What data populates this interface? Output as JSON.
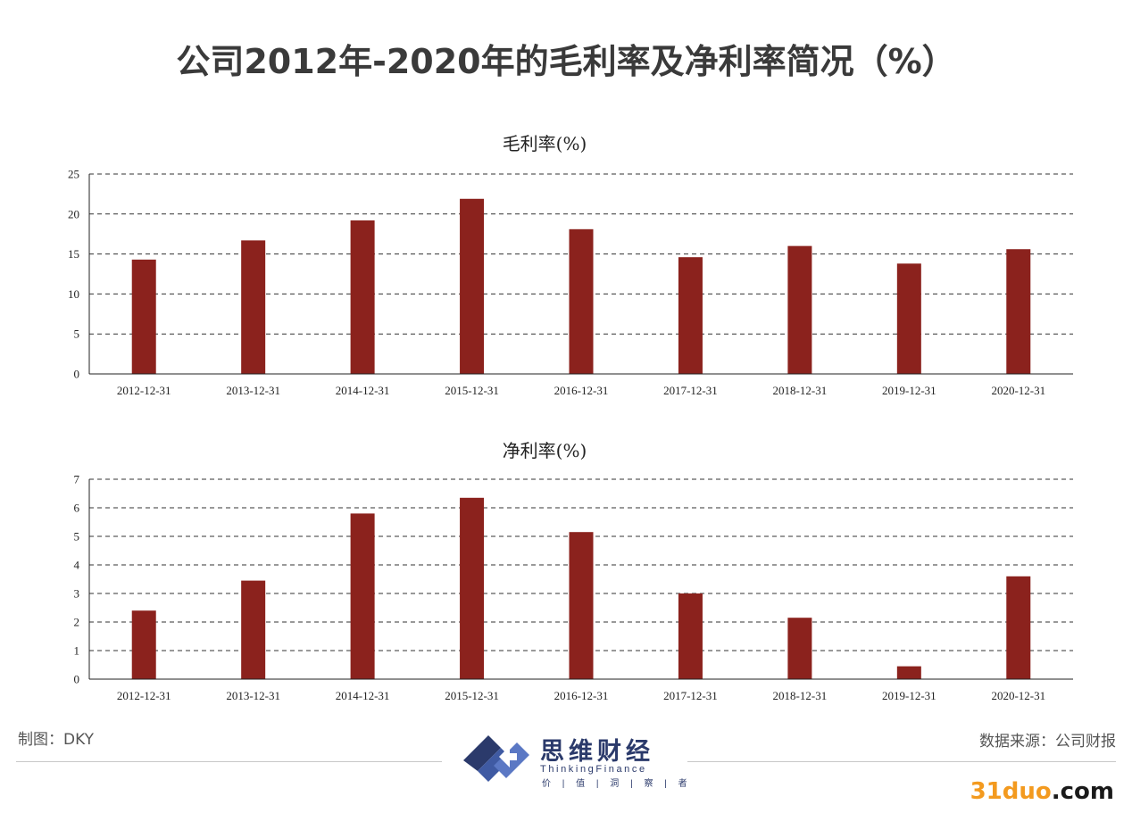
{
  "page": {
    "title": "公司2012年-2020年的毛利率及净利率简况（%）",
    "credit": "制图：DKY",
    "source": "数据来源：公司财报",
    "logo": {
      "name": "思维财经",
      "sub": "ThinkingFinance",
      "motto": "价 | 值 | 洞 | 察 | 者"
    },
    "watermark": {
      "accent": "31duo",
      "suffix": ".com"
    }
  },
  "colors": {
    "bar": "#8b221d",
    "grid": "#333333",
    "axis": "#222222"
  },
  "chart_data": [
    {
      "type": "bar",
      "title": "毛利率(%)",
      "categories": [
        "2012-12-31",
        "2013-12-31",
        "2014-12-31",
        "2015-12-31",
        "2016-12-31",
        "2017-12-31",
        "2018-12-31",
        "2019-12-31",
        "2020-12-31"
      ],
      "values": [
        14.3,
        16.7,
        19.2,
        21.9,
        18.1,
        14.6,
        16.0,
        13.8,
        15.6
      ],
      "ylim": [
        0,
        25
      ],
      "yticks": [
        0,
        5,
        10,
        15,
        20,
        25
      ],
      "grid": true
    },
    {
      "type": "bar",
      "title": "净利率(%)",
      "categories": [
        "2012-12-31",
        "2013-12-31",
        "2014-12-31",
        "2015-12-31",
        "2016-12-31",
        "2017-12-31",
        "2018-12-31",
        "2019-12-31",
        "2020-12-31"
      ],
      "values": [
        2.4,
        3.45,
        5.8,
        6.35,
        5.15,
        3.0,
        2.15,
        0.45,
        3.6
      ],
      "ylim": [
        0,
        7
      ],
      "yticks": [
        0,
        1,
        2,
        3,
        4,
        5,
        6,
        7
      ],
      "grid": true
    }
  ]
}
